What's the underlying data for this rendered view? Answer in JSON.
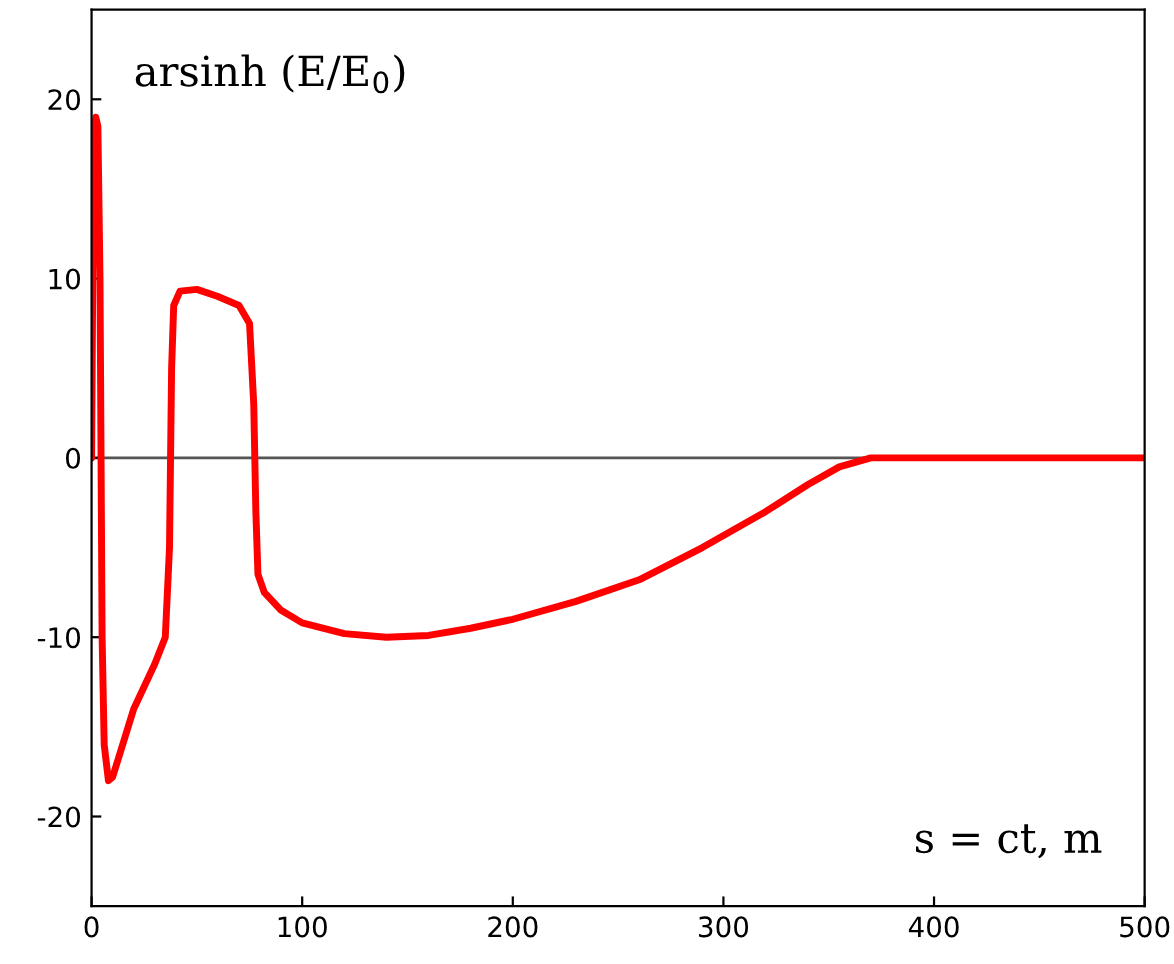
{
  "chart_data": {
    "type": "line",
    "xlabel": "s = ct, m",
    "ylabel": "arsinh (E/E$_{0}$)",
    "series": [
      {
        "color": "#ff0000",
        "x": [
          0,
          1,
          2,
          3,
          4,
          5,
          6,
          8,
          10,
          20,
          30,
          35,
          37,
          38,
          39,
          42,
          50,
          60,
          70,
          75,
          77,
          78,
          79,
          82,
          90,
          100,
          120,
          140,
          160,
          180,
          200,
          230,
          260,
          290,
          320,
          340,
          355,
          370,
          400,
          500
        ],
        "values": [
          0,
          18,
          19,
          18.5,
          10,
          -10,
          -16,
          -18,
          -17.8,
          -14,
          -11.5,
          -10,
          -5,
          5,
          8.5,
          9.3,
          9.4,
          9,
          8.5,
          7.5,
          3,
          -3,
          -6.5,
          -7.5,
          -8.5,
          -9.2,
          -9.8,
          -10,
          -9.9,
          -9.5,
          -9,
          -8,
          -6.8,
          -5,
          -3,
          -1.5,
          -0.5,
          0,
          0,
          0
        ]
      }
    ],
    "xlim": [
      0,
      500
    ],
    "xticks": [
      0,
      100,
      200,
      300,
      400,
      500
    ],
    "ylim": [
      -25,
      25
    ],
    "yticks": [
      -20,
      -10,
      0,
      10,
      20
    ],
    "ref_lines": [
      {
        "axis": "y",
        "value": 0,
        "color": "#555555"
      }
    ],
    "grid": false,
    "legend": false
  }
}
